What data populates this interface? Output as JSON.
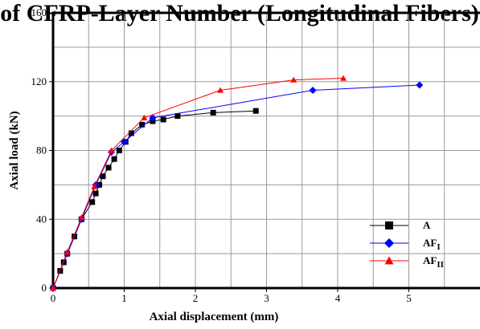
{
  "chart_data": {
    "type": "line",
    "title": "of CFRP-Layer Number (Longitudinal Fibers)",
    "xlabel": "Axial displacement (mm)",
    "ylabel": "Axial load (kN)",
    "xlim": [
      0,
      6
    ],
    "ylim": [
      0,
      160
    ],
    "xticks": [
      "0",
      "1",
      "2",
      "3",
      "4",
      "5"
    ],
    "yticks": [
      "0",
      "40",
      "80",
      "120",
      "160"
    ],
    "grid": true,
    "legend_position": "bottom-right",
    "series": [
      {
        "name": "A",
        "name_sub": "",
        "color": "#000000",
        "marker": "square",
        "x": [
          0,
          0.1,
          0.15,
          0.2,
          0.3,
          0.4,
          0.55,
          0.6,
          0.65,
          0.7,
          0.78,
          0.86,
          0.93,
          1.02,
          1.1,
          1.25,
          1.4,
          1.55,
          1.75,
          2.25,
          2.85
        ],
        "y": [
          0,
          10,
          15,
          20,
          30,
          40,
          50,
          55,
          60,
          65,
          70,
          75,
          80,
          85,
          90,
          95,
          97,
          98,
          100,
          102,
          103
        ]
      },
      {
        "name": "AF",
        "name_sub": "I",
        "color": "#0000ff",
        "marker": "diamond",
        "x": [
          0,
          0.2,
          0.4,
          0.6,
          0.82,
          1.0,
          1.4,
          3.65,
          5.15
        ],
        "y": [
          0,
          20,
          40,
          60,
          79,
          85,
          99,
          115,
          118
        ]
      },
      {
        "name": "AF",
        "name_sub": "II",
        "color": "#ff0000",
        "marker": "triangle",
        "x": [
          0,
          0.2,
          0.4,
          0.58,
          0.82,
          1.28,
          2.35,
          3.38,
          4.08
        ],
        "y": [
          0,
          21,
          41,
          59,
          80,
          99,
          115,
          121,
          122
        ]
      }
    ]
  }
}
